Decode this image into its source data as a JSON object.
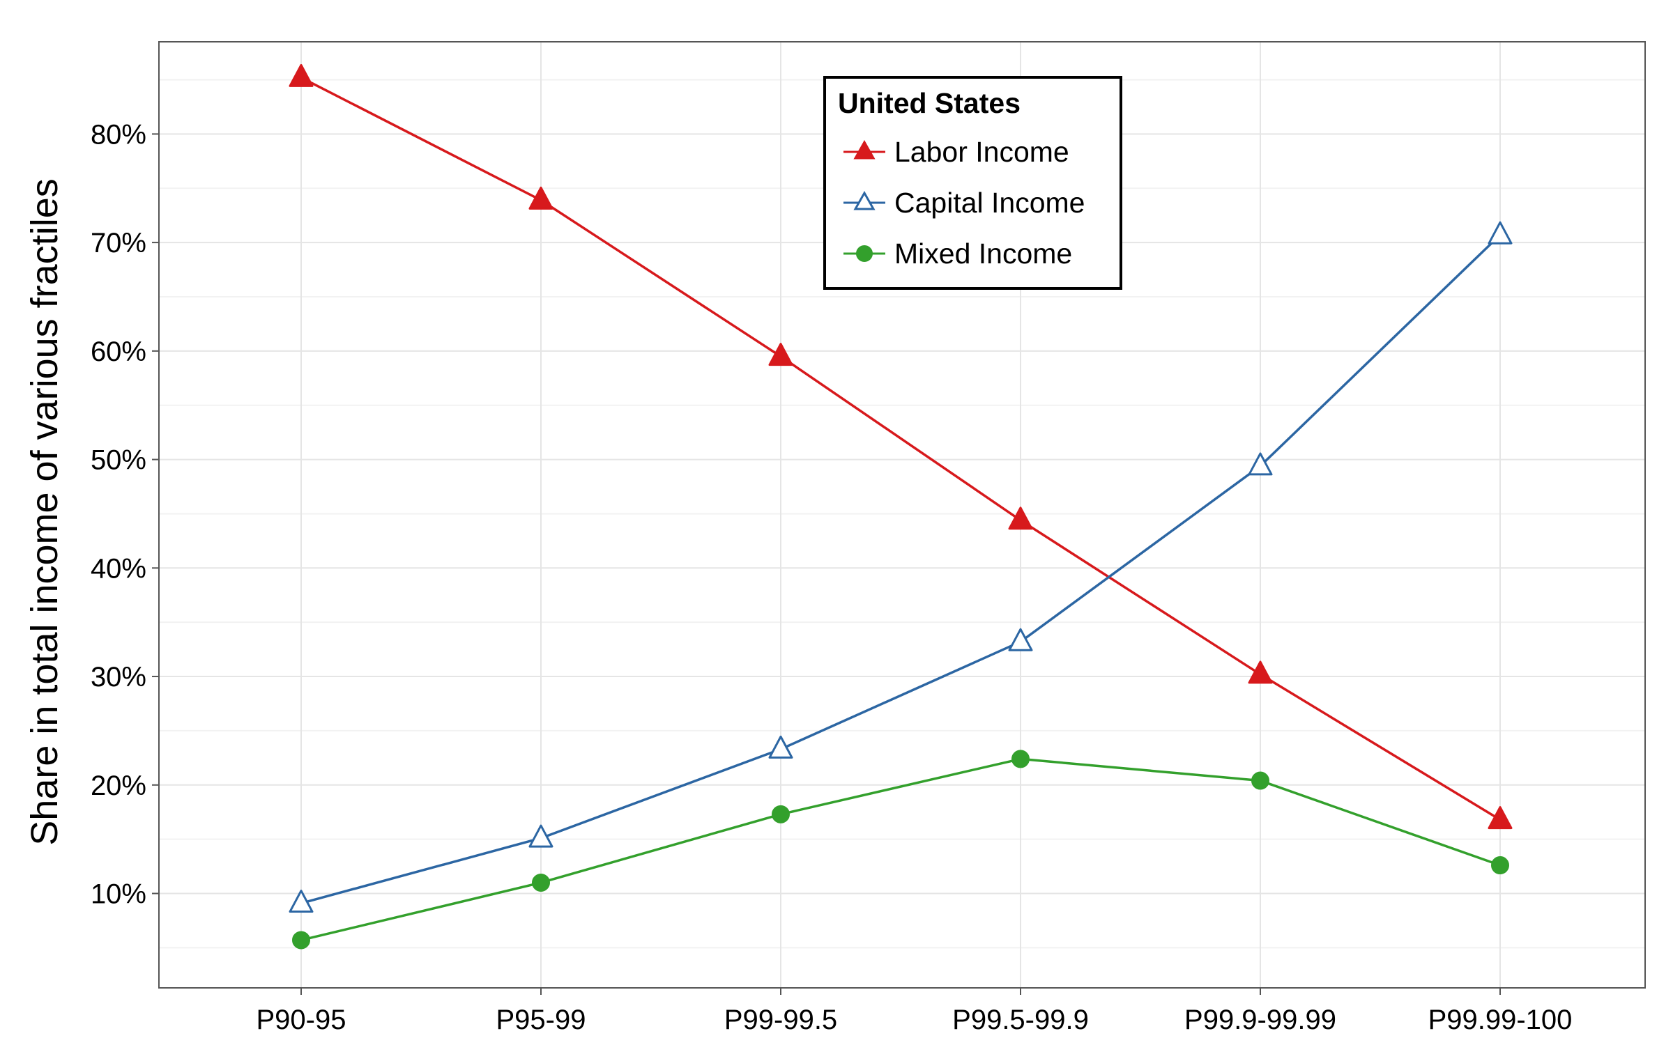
{
  "chart_data": {
    "type": "line",
    "title": "",
    "xlabel": "",
    "ylabel": "Share in total income of various fractiles",
    "categories": [
      "P90-95",
      "P95-99",
      "P99-99.5",
      "P99.5-99.9",
      "P99.9-99.99",
      "P99.99-100"
    ],
    "ylim": [
      1.3,
      88.5
    ],
    "yticks": [
      10,
      20,
      30,
      40,
      50,
      60,
      70,
      80
    ],
    "ytick_labels": [
      "10%",
      "20%",
      "30%",
      "40%",
      "50%",
      "60%",
      "70%",
      "80%"
    ],
    "grid": true,
    "legend": {
      "title": "United States",
      "placement": "top-center"
    },
    "series": [
      {
        "name": "Labor Income",
        "marker": "triangle-filled",
        "color": "#d7191c",
        "values": [
          85.2,
          73.9,
          59.5,
          44.4,
          30.2,
          16.8
        ]
      },
      {
        "name": "Capital Income",
        "marker": "triangle-open",
        "color": "#2c66a3",
        "values": [
          9.1,
          15.1,
          23.3,
          33.2,
          49.4,
          70.7
        ]
      },
      {
        "name": "Mixed Income",
        "marker": "circle-filled",
        "color": "#33a02c",
        "values": [
          5.7,
          11.0,
          17.3,
          22.4,
          20.4,
          12.6
        ]
      }
    ]
  }
}
